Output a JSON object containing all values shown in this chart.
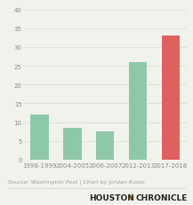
{
  "categories": [
    "1998-1999",
    "2004-2005",
    "2006-2007",
    "2012-2013",
    "2017-2018"
  ],
  "values": [
    12,
    8.5,
    7.5,
    26,
    33
  ],
  "bar_colors": [
    "#8dc9a8",
    "#8dc9a8",
    "#8dc9a8",
    "#8dc9a8",
    "#e06060"
  ],
  "ylim": [
    0,
    40
  ],
  "yticks": [
    0,
    5,
    10,
    15,
    20,
    25,
    30,
    35,
    40
  ],
  "source_text": "Source: Washington Post | Chart by Jordan Rubio",
  "brand_text": "HOUSTON",
  "brand_star": "★",
  "brand_text2": "CHRONICLE",
  "background_color": "#f2f2ed",
  "grid_color": "#e0e0da",
  "tick_label_fontsize": 5,
  "source_fontsize": 4.5,
  "brand_fontsize": 6.5
}
